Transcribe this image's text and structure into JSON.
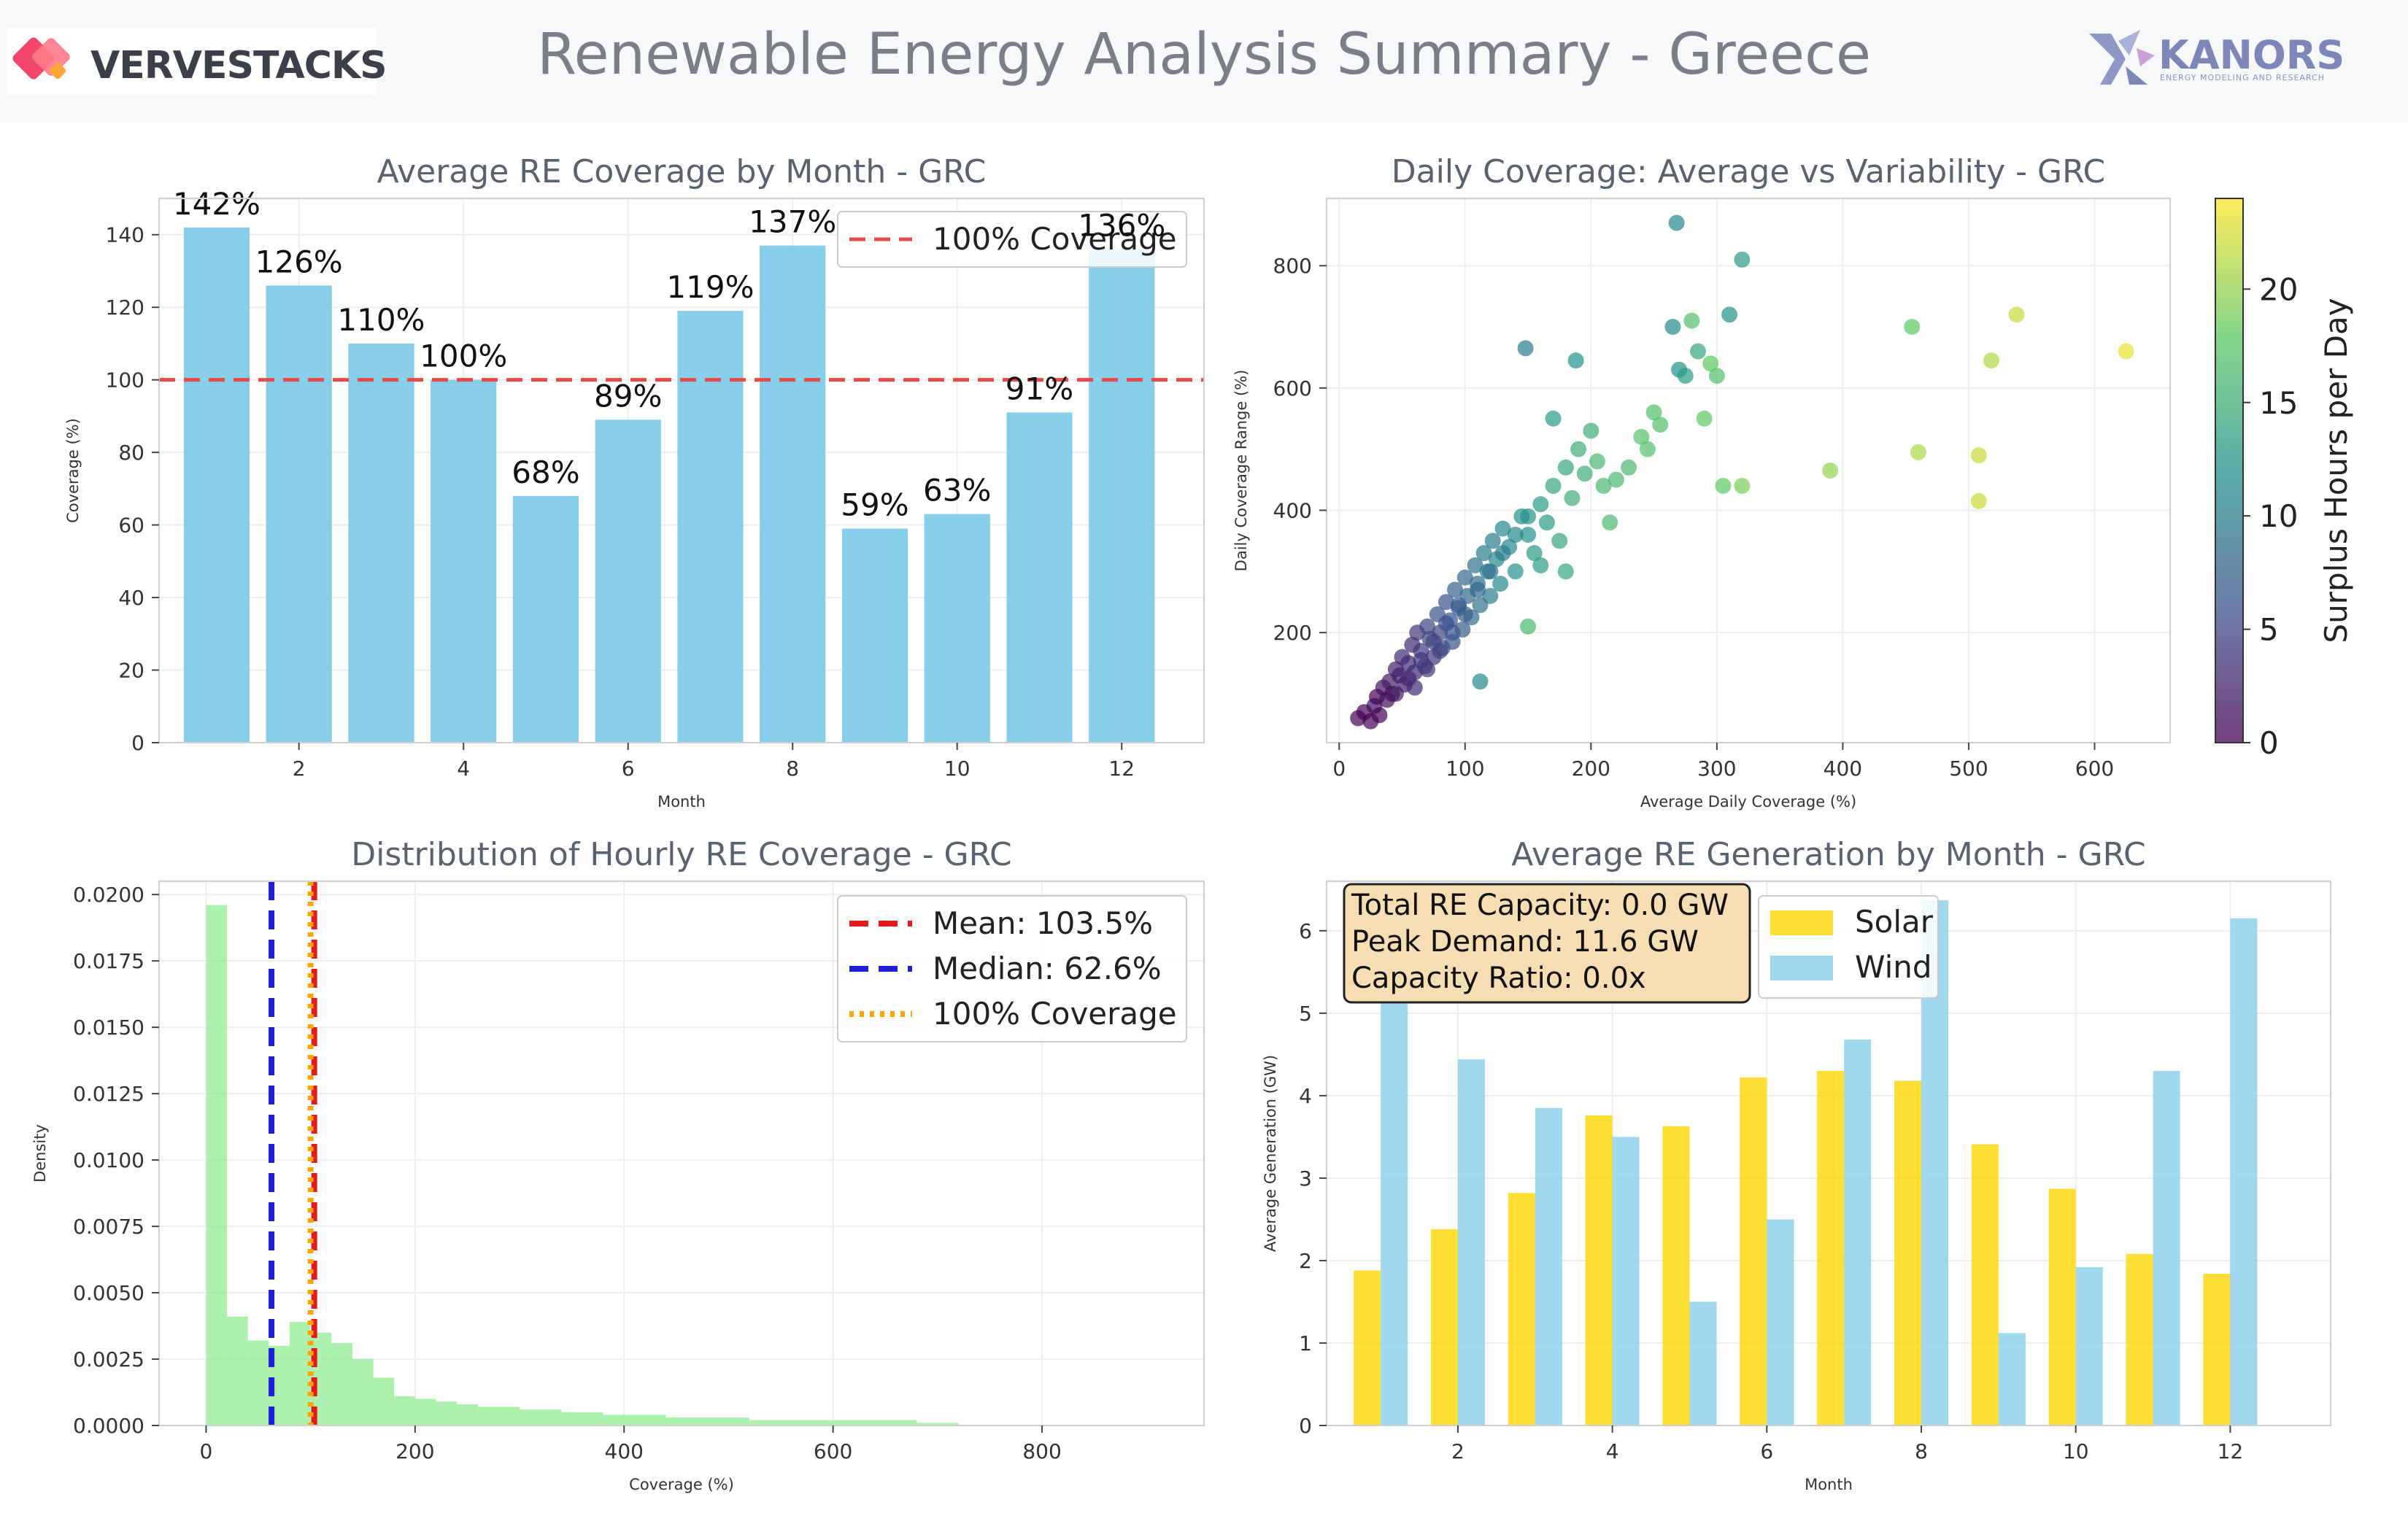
{
  "header": {
    "title": "Renewable Energy Analysis Summary - Greece",
    "left_logo_text": "VERVESTACKS",
    "right_logo_text": "KANORS",
    "right_logo_subtext": "ENERGY MODELING AND RESEARCH"
  },
  "colors": {
    "coverage_bar": "#87ceeb",
    "ref_line": "#e84a4a",
    "hist_bar": "#90ee90",
    "mean_line": "#e41a1c",
    "median_line": "#1f1fd8",
    "hundred_line": "#ffa500",
    "solar": "#ffd700",
    "wind": "#87ceeb",
    "title_text": "#5a6270"
  },
  "chart_data": [
    {
      "type": "bar",
      "title": "Average RE Coverage by Month - GRC",
      "xlabel": "Month",
      "ylabel": "Coverage (%)",
      "categories": [
        1,
        2,
        3,
        4,
        5,
        6,
        7,
        8,
        9,
        10,
        11,
        12
      ],
      "values": [
        142,
        126,
        110,
        100,
        68,
        89,
        119,
        137,
        59,
        63,
        91,
        136
      ],
      "data_labels": [
        "142%",
        "126%",
        "110%",
        "100%",
        "68%",
        "89%",
        "119%",
        "137%",
        "59%",
        "63%",
        "91%",
        "136%"
      ],
      "xticks": [
        2,
        4,
        6,
        8,
        10,
        12
      ],
      "yticks": [
        0,
        20,
        40,
        60,
        80,
        100,
        120,
        140
      ],
      "xlim": [
        0.3,
        13
      ],
      "ylim": [
        0,
        150
      ],
      "reference_line": {
        "y": 100,
        "label": "100% Coverage"
      },
      "legend": "top-right",
      "grid": true
    },
    {
      "type": "scatter",
      "title": "Daily Coverage: Average vs Variability - GRC",
      "xlabel": "Average Daily Coverage (%)",
      "ylabel": "Daily Coverage Range (%)",
      "colorbar_label": "Surplus Hours per Day",
      "colorbar_ticks": [
        0,
        5,
        10,
        15,
        20
      ],
      "colorbar_range": [
        0,
        24
      ],
      "xticks": [
        0,
        100,
        200,
        300,
        400,
        500,
        600
      ],
      "yticks": [
        200,
        400,
        600,
        800
      ],
      "xlim": [
        -10,
        660
      ],
      "ylim": [
        20,
        910
      ],
      "grid": true,
      "points": [
        [
          15,
          60,
          0
        ],
        [
          20,
          70,
          0
        ],
        [
          25,
          55,
          0
        ],
        [
          28,
          80,
          1
        ],
        [
          30,
          95,
          0
        ],
        [
          32,
          65,
          0
        ],
        [
          35,
          110,
          1
        ],
        [
          38,
          90,
          1
        ],
        [
          40,
          120,
          2
        ],
        [
          42,
          100,
          1
        ],
        [
          45,
          140,
          2
        ],
        [
          48,
          130,
          2
        ],
        [
          50,
          160,
          3
        ],
        [
          52,
          115,
          2
        ],
        [
          55,
          150,
          3
        ],
        [
          58,
          180,
          3
        ],
        [
          60,
          135,
          3
        ],
        [
          62,
          200,
          4
        ],
        [
          65,
          170,
          4
        ],
        [
          68,
          145,
          4
        ],
        [
          70,
          210,
          5
        ],
        [
          72,
          190,
          5
        ],
        [
          75,
          160,
          4
        ],
        [
          78,
          230,
          6
        ],
        [
          80,
          200,
          5
        ],
        [
          82,
          175,
          5
        ],
        [
          85,
          250,
          6
        ],
        [
          88,
          220,
          6
        ],
        [
          90,
          185,
          6
        ],
        [
          92,
          270,
          7
        ],
        [
          95,
          240,
          7
        ],
        [
          98,
          205,
          7
        ],
        [
          100,
          290,
          8
        ],
        [
          102,
          260,
          8
        ],
        [
          105,
          225,
          8
        ],
        [
          108,
          310,
          9
        ],
        [
          110,
          280,
          9
        ],
        [
          112,
          245,
          9
        ],
        [
          115,
          330,
          10
        ],
        [
          118,
          300,
          10
        ],
        [
          120,
          260,
          10
        ],
        [
          122,
          350,
          10
        ],
        [
          125,
          320,
          11
        ],
        [
          128,
          280,
          11
        ],
        [
          130,
          370,
          11
        ],
        [
          135,
          340,
          11
        ],
        [
          140,
          300,
          12
        ],
        [
          145,
          390,
          12
        ],
        [
          150,
          360,
          12
        ],
        [
          155,
          330,
          13
        ],
        [
          160,
          410,
          13
        ],
        [
          165,
          380,
          13
        ],
        [
          170,
          440,
          14
        ],
        [
          175,
          350,
          14
        ],
        [
          180,
          470,
          14
        ],
        [
          185,
          420,
          15
        ],
        [
          190,
          500,
          15
        ],
        [
          195,
          460,
          15
        ],
        [
          200,
          530,
          15
        ],
        [
          205,
          480,
          16
        ],
        [
          210,
          440,
          16
        ],
        [
          215,
          380,
          16
        ],
        [
          220,
          450,
          16
        ],
        [
          230,
          470,
          16
        ],
        [
          240,
          520,
          17
        ],
        [
          245,
          500,
          17
        ],
        [
          250,
          560,
          17
        ],
        [
          255,
          540,
          17
        ],
        [
          265,
          700,
          11
        ],
        [
          270,
          630,
          12
        ],
        [
          275,
          620,
          13
        ],
        [
          280,
          710,
          17
        ],
        [
          285,
          660,
          14
        ],
        [
          290,
          550,
          18
        ],
        [
          295,
          640,
          18
        ],
        [
          300,
          620,
          17
        ],
        [
          305,
          440,
          18
        ],
        [
          310,
          720,
          12
        ],
        [
          320,
          440,
          19
        ],
        [
          320,
          810,
          13
        ],
        [
          268,
          870,
          11
        ],
        [
          148,
          665,
          10
        ],
        [
          188,
          645,
          12
        ],
        [
          112,
          120,
          11
        ],
        [
          150,
          210,
          16
        ],
        [
          390,
          465,
          20
        ],
        [
          455,
          700,
          18
        ],
        [
          460,
          495,
          21
        ],
        [
          508,
          490,
          22
        ],
        [
          508,
          415,
          22
        ],
        [
          518,
          645,
          21
        ],
        [
          538,
          720,
          22
        ],
        [
          625,
          660,
          23
        ],
        [
          170,
          550,
          13
        ],
        [
          180,
          300,
          14
        ],
        [
          160,
          310,
          13
        ],
        [
          45,
          100,
          2
        ],
        [
          55,
          125,
          3
        ],
        [
          65,
          155,
          4
        ],
        [
          75,
          185,
          5
        ],
        [
          85,
          215,
          6
        ],
        [
          95,
          245,
          7
        ],
        [
          60,
          110,
          3
        ],
        [
          70,
          140,
          4
        ],
        [
          80,
          170,
          5
        ],
        [
          90,
          200,
          6
        ],
        [
          100,
          230,
          7
        ],
        [
          110,
          270,
          8
        ],
        [
          120,
          300,
          9
        ],
        [
          130,
          330,
          10
        ],
        [
          140,
          360,
          11
        ],
        [
          150,
          390,
          12
        ]
      ]
    },
    {
      "type": "bar",
      "title": "Distribution of Hourly RE Coverage - GRC",
      "xlabel": "Coverage (%)",
      "ylabel": "Density",
      "bin_width": 20,
      "bin_start": 0,
      "values": [
        0.0196,
        0.0041,
        0.0032,
        0.003,
        0.0039,
        0.0035,
        0.0031,
        0.0025,
        0.0018,
        0.0011,
        0.001,
        0.0009,
        0.0008,
        0.0007,
        0.0007,
        0.0006,
        0.0006,
        0.0005,
        0.0005,
        0.0004,
        0.0004,
        0.0004,
        0.0003,
        0.0003,
        0.0003,
        0.0003,
        0.0002,
        0.0002,
        0.0002,
        0.0002,
        0.0002,
        0.0002,
        0.0002,
        0.0002,
        0.0001,
        0.0001
      ],
      "xticks": [
        0,
        200,
        400,
        600,
        800
      ],
      "yticks": [
        0.0,
        0.0025,
        0.005,
        0.0075,
        0.01,
        0.0125,
        0.015,
        0.0175,
        0.02
      ],
      "ytick_labels": [
        "0.0000",
        "0.0025",
        "0.0050",
        "0.0075",
        "0.0100",
        "0.0125",
        "0.0150",
        "0.0175",
        "0.0200"
      ],
      "xlim": [
        -45,
        955
      ],
      "ylim": [
        0,
        0.0205
      ],
      "lines": [
        {
          "x": 103.5,
          "label": "Mean: 103.5%",
          "style": "dashed"
        },
        {
          "x": 62.6,
          "label": "Median: 62.6%",
          "style": "dashed"
        },
        {
          "x": 100,
          "label": "100% Coverage",
          "style": "dotted"
        }
      ],
      "legend": "top-right",
      "grid": true
    },
    {
      "type": "bar",
      "title": "Average RE Generation by Month - GRC",
      "xlabel": "Month",
      "ylabel": "Average Generation (GW)",
      "categories": [
        1,
        2,
        3,
        4,
        5,
        6,
        7,
        8,
        9,
        10,
        11,
        12
      ],
      "series": [
        {
          "name": "Solar",
          "values": [
            1.88,
            2.38,
            2.82,
            3.76,
            3.63,
            4.22,
            4.3,
            4.18,
            3.41,
            2.87,
            2.08,
            1.84
          ]
        },
        {
          "name": "Wind",
          "values": [
            5.75,
            4.44,
            3.85,
            3.5,
            1.5,
            2.5,
            4.68,
            6.37,
            1.12,
            1.92,
            4.3,
            6.15
          ]
        }
      ],
      "xticks": [
        2,
        4,
        6,
        8,
        10,
        12
      ],
      "yticks": [
        0,
        1,
        2,
        3,
        4,
        5,
        6
      ],
      "xlim": [
        0.3,
        13.3
      ],
      "ylim": [
        0,
        6.6
      ],
      "legend": "top-left-center",
      "annotation": [
        "Total RE Capacity: 0.0 GW",
        "Peak Demand: 11.6 GW",
        "Capacity Ratio: 0.0x"
      ],
      "grid": true
    }
  ]
}
